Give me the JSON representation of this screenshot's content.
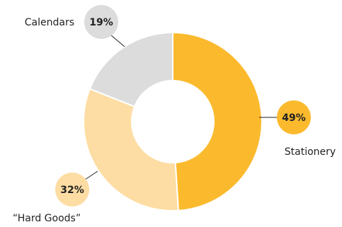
{
  "chart_data": {
    "type": "pie",
    "donut": true,
    "categories": [
      "Stationery",
      "“Hard Goods”",
      "Calendars"
    ],
    "values": [
      49,
      32,
      19
    ],
    "value_labels": [
      "49%",
      "32%",
      "19%"
    ],
    "colors": [
      "#FBBA2E",
      "#FDDDA3",
      "#DCDCDC"
    ],
    "title": "",
    "legend": "none"
  }
}
